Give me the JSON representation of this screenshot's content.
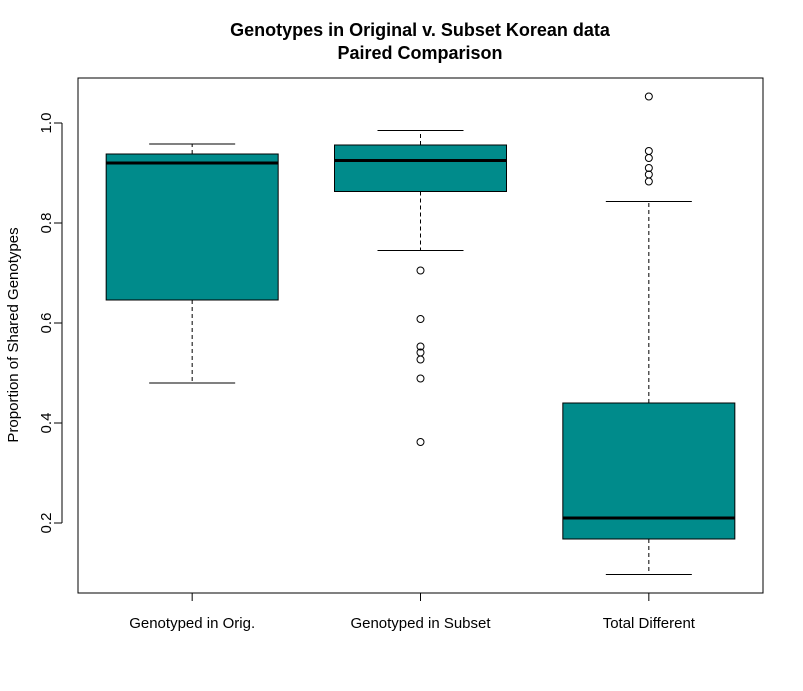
{
  "chart_data": {
    "type": "boxplot",
    "title": "Genotypes in Original v. Subset Korean data",
    "subtitle": "Paired Comparison",
    "xlabel": "",
    "ylabel": "Proportion of Shared Genotypes",
    "ylim": [
      0.06,
      1.09
    ],
    "yticks": [
      0.2,
      0.4,
      0.6,
      0.8,
      1.0
    ],
    "ytick_labels": [
      "0.2",
      "0.4",
      "0.6",
      "0.8",
      "1.0"
    ],
    "grid": false,
    "box_color": "#008b8b",
    "categories": [
      "Genotyped in Orig.",
      "Genotyped in Subset",
      "Total Different"
    ],
    "boxes": [
      {
        "category": "Genotyped in Orig.",
        "whisker_low": 0.48,
        "q1": 0.646,
        "median": 0.92,
        "q3": 0.938,
        "whisker_high": 0.958,
        "outliers": []
      },
      {
        "category": "Genotyped in Subset",
        "whisker_low": 0.745,
        "q1": 0.863,
        "median": 0.925,
        "q3": 0.956,
        "whisker_high": 0.985,
        "outliers": [
          0.705,
          0.608,
          0.553,
          0.541,
          0.527,
          0.489,
          0.362
        ]
      },
      {
        "category": "Total Different",
        "whisker_low": 0.097,
        "q1": 0.168,
        "median": 0.21,
        "q3": 0.44,
        "whisker_high": 0.843,
        "outliers": [
          1.053,
          0.944,
          0.93,
          0.91,
          0.897,
          0.883
        ]
      }
    ]
  }
}
